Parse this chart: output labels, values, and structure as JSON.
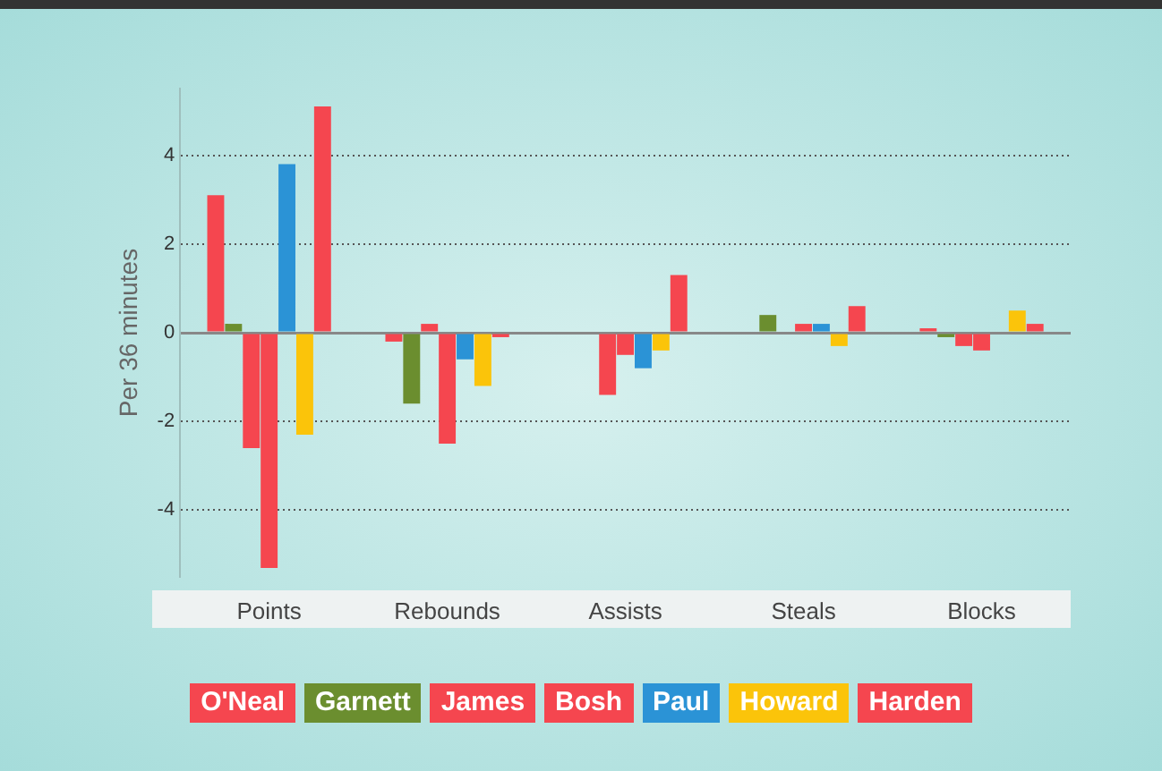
{
  "chart_data": {
    "type": "bar",
    "ylabel": "Per 36 minutes",
    "categories": [
      "Points",
      "Rebounds",
      "Assists",
      "Steals",
      "Blocks"
    ],
    "series": [
      {
        "name": "O'Neal",
        "color": "#f5464f",
        "values": [
          3.1,
          -0.2,
          0,
          0,
          0.1
        ]
      },
      {
        "name": "Garnett",
        "color": "#6b8e2f",
        "values": [
          0.2,
          -1.6,
          0,
          0.4,
          -0.1
        ]
      },
      {
        "name": "James",
        "color": "#f5464f",
        "values": [
          -2.6,
          0.2,
          -1.4,
          0,
          -0.3
        ]
      },
      {
        "name": "Bosh",
        "color": "#f5464f",
        "values": [
          -5.3,
          -2.5,
          -0.5,
          0.2,
          -0.4
        ]
      },
      {
        "name": "Paul",
        "color": "#2b93d6",
        "values": [
          3.8,
          -0.6,
          -0.8,
          0.2,
          0
        ]
      },
      {
        "name": "Howard",
        "color": "#fbc40a",
        "values": [
          -2.3,
          -1.2,
          -0.4,
          -0.3,
          0.5
        ]
      },
      {
        "name": "Harden",
        "color": "#f5464f",
        "values": [
          5.1,
          -0.1,
          1.3,
          0.6,
          0.2
        ]
      }
    ],
    "ylim": [
      -5.5,
      5.5
    ],
    "yticks": [
      -4,
      -2,
      0,
      2,
      4
    ],
    "grid": "y",
    "legend": "bottom"
  }
}
